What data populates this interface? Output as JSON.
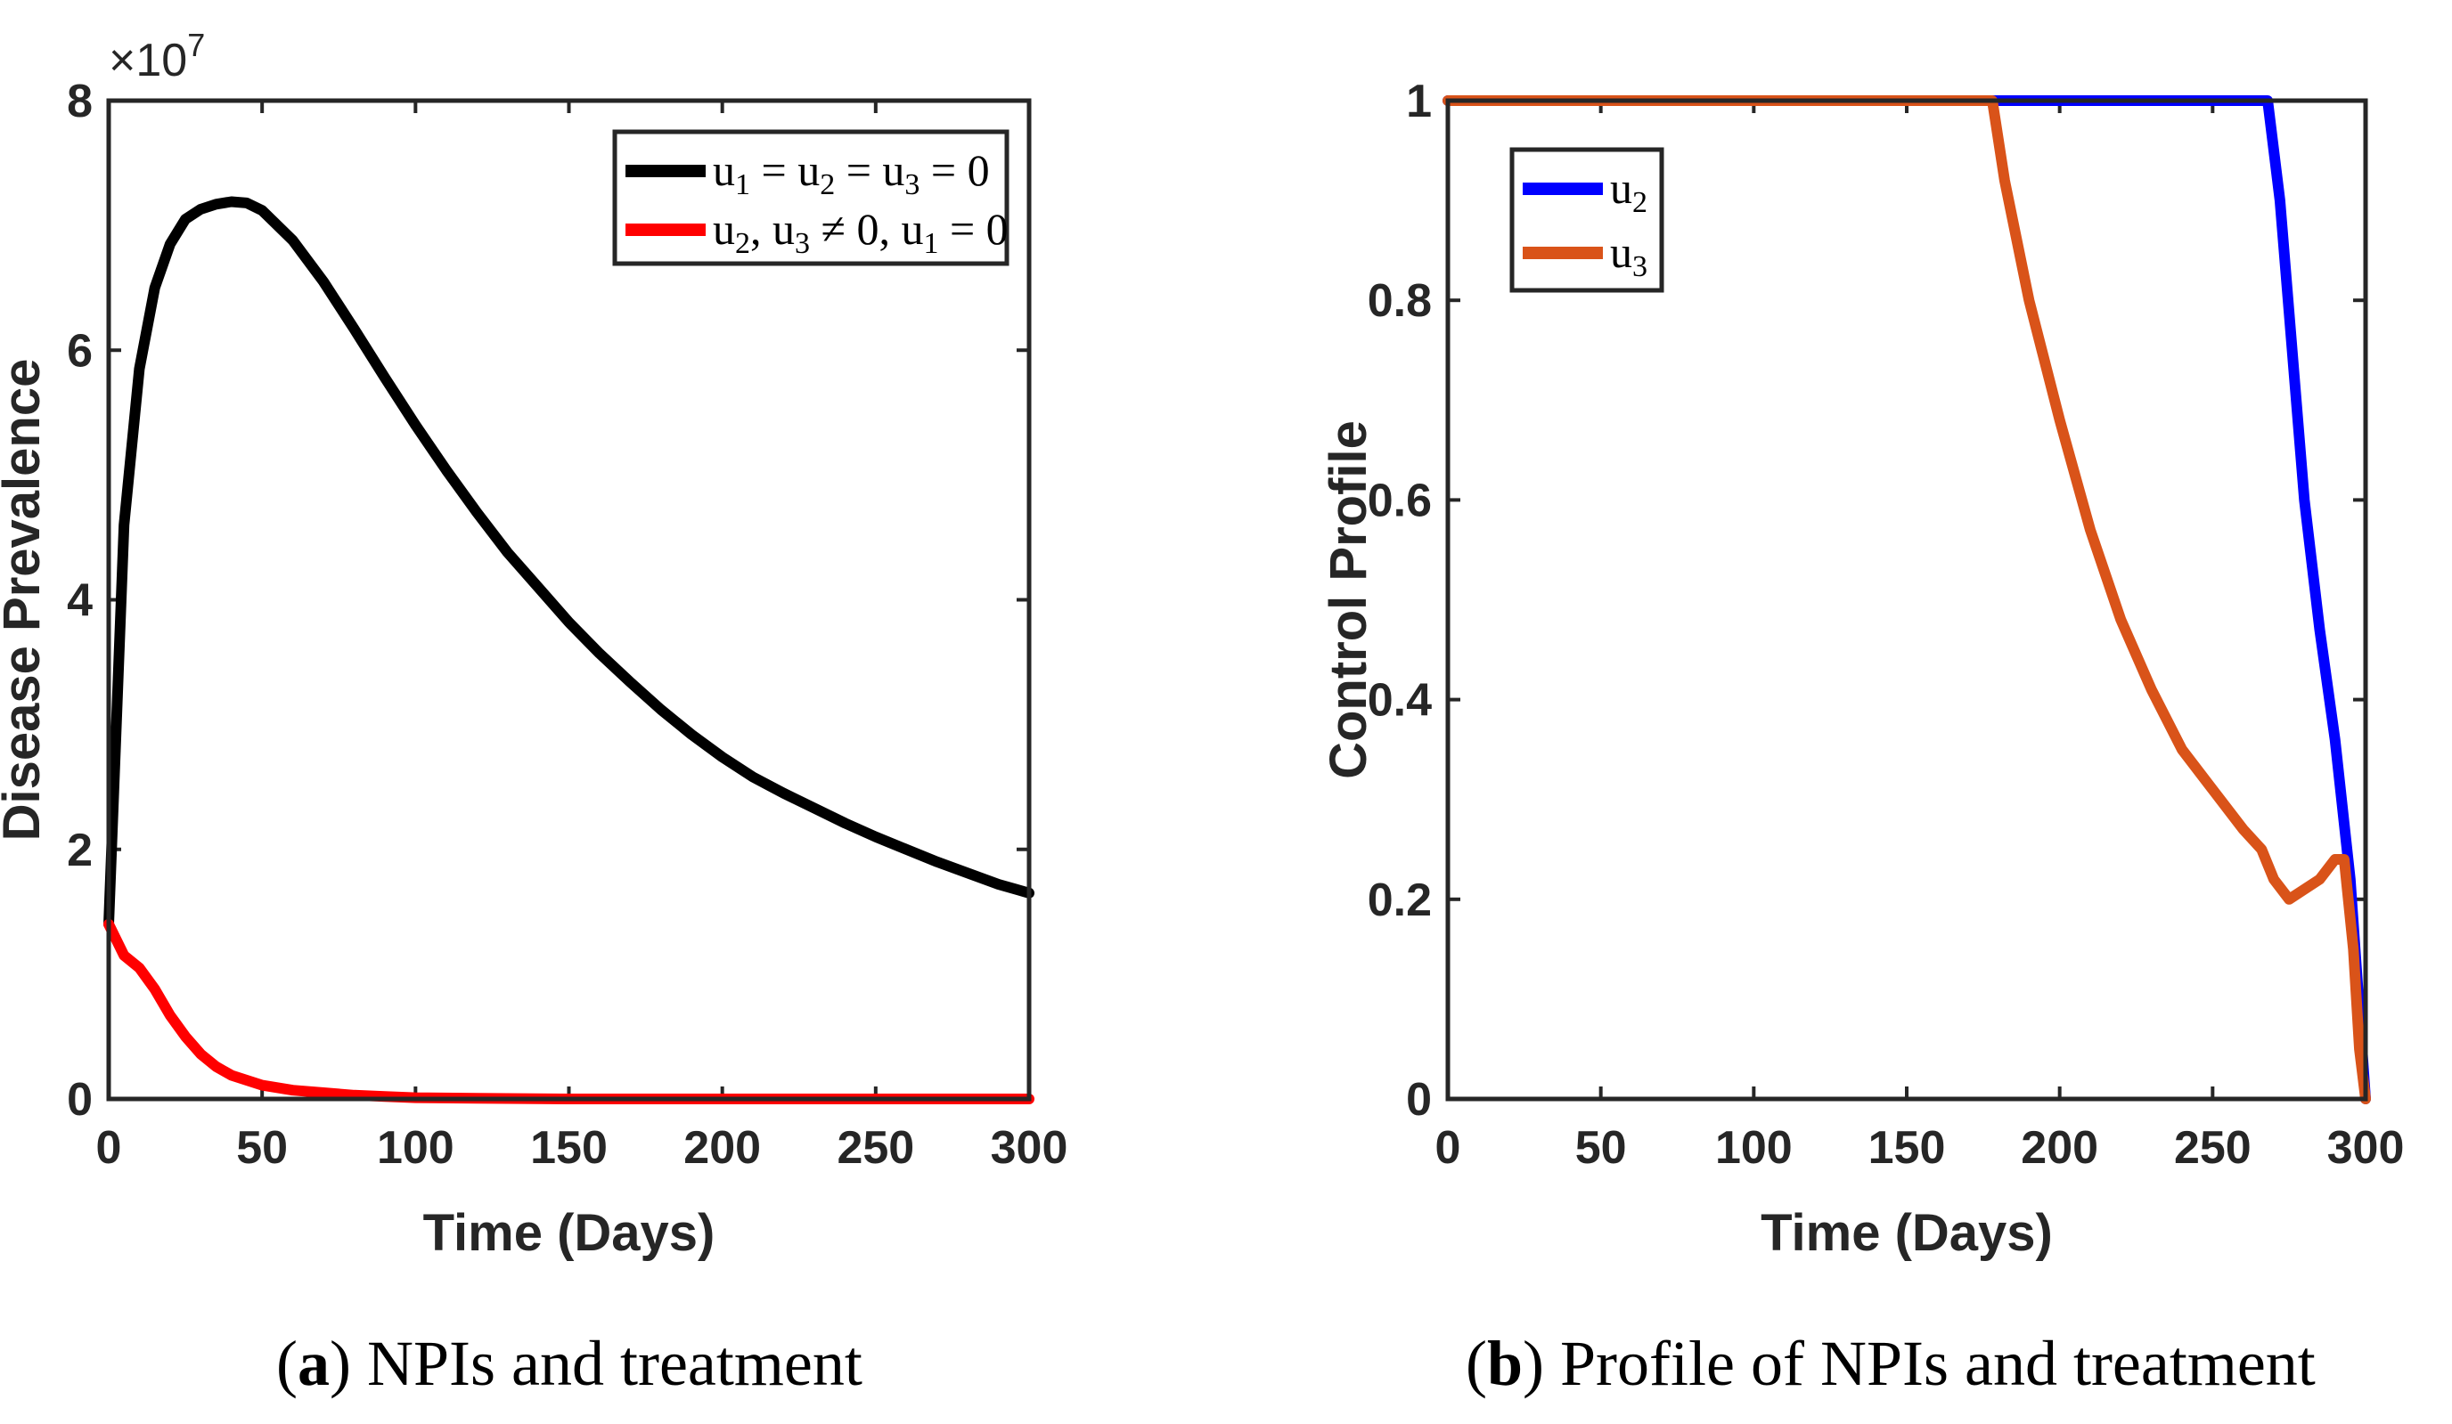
{
  "chart_data": [
    {
      "type": "line",
      "panel": "a",
      "caption_letter": "a",
      "caption_text": "NPIs and treatment",
      "xlabel": "Time (Days)",
      "ylabel": "Disease Prevalence",
      "xlim": [
        0,
        300
      ],
      "ylim": [
        0,
        8
      ],
      "x_ticks": [
        "0",
        "50",
        "100",
        "150",
        "200",
        "250",
        "300"
      ],
      "y_ticks": [
        "0",
        "2",
        "4",
        "6",
        "8"
      ],
      "y_multiplier_base": "×10",
      "y_multiplier_exp": "7",
      "grid": false,
      "legend_position": "top-right",
      "series": [
        {
          "name": "u1 = u2 = u3 = 0",
          "legend_parts": [
            "u",
            "1",
            " = u",
            "2",
            " = u",
            "3",
            " = 0"
          ],
          "color": "#000000",
          "x": [
            0,
            5,
            10,
            15,
            20,
            25,
            30,
            35,
            40,
            45,
            50,
            60,
            70,
            80,
            90,
            100,
            110,
            120,
            130,
            140,
            150,
            160,
            170,
            180,
            190,
            200,
            210,
            220,
            230,
            240,
            250,
            260,
            270,
            280,
            290,
            300
          ],
          "y": [
            1.4,
            4.6,
            5.85,
            6.5,
            6.85,
            7.05,
            7.13,
            7.17,
            7.19,
            7.18,
            7.12,
            6.88,
            6.55,
            6.17,
            5.78,
            5.4,
            5.04,
            4.7,
            4.38,
            4.1,
            3.82,
            3.57,
            3.34,
            3.12,
            2.92,
            2.74,
            2.58,
            2.45,
            2.33,
            2.21,
            2.1,
            2.0,
            1.9,
            1.81,
            1.72,
            1.65
          ]
        },
        {
          "name": "u2, u3 ≠ 0, u1 = 0",
          "legend_parts": [
            "u",
            "2",
            ", u",
            "3",
            " ≠ 0, u",
            "1",
            " = 0"
          ],
          "color": "#ff0000",
          "x": [
            0,
            5,
            10,
            15,
            20,
            25,
            30,
            35,
            40,
            50,
            60,
            70,
            80,
            90,
            100,
            120,
            150,
            200,
            250,
            300
          ],
          "y": [
            1.4,
            1.15,
            1.05,
            0.88,
            0.67,
            0.5,
            0.36,
            0.26,
            0.19,
            0.11,
            0.07,
            0.05,
            0.03,
            0.02,
            0.01,
            0.005,
            0.0,
            0.0,
            0.0,
            0.0
          ]
        }
      ]
    },
    {
      "type": "line",
      "panel": "b",
      "caption_letter": "b",
      "caption_text": "Profile of NPIs and treatment",
      "xlabel": "Time (Days)",
      "ylabel": "Control Profile",
      "xlim": [
        0,
        300
      ],
      "ylim": [
        0,
        1
      ],
      "x_ticks": [
        "0",
        "50",
        "100",
        "150",
        "200",
        "250",
        "300"
      ],
      "y_ticks": [
        "0",
        "0.2",
        "0.4",
        "0.6",
        "0.8",
        "1"
      ],
      "grid": false,
      "legend_position": "top-left",
      "series": [
        {
          "name": "u2",
          "legend_parts": [
            "u",
            "2"
          ],
          "color": "#0000ff",
          "x": [
            0,
            50,
            100,
            150,
            200,
            250,
            268,
            272,
            276,
            280,
            285,
            290,
            295,
            300
          ],
          "y": [
            1.0,
            1.0,
            1.0,
            1.0,
            1.0,
            1.0,
            1.0,
            0.9,
            0.75,
            0.6,
            0.47,
            0.36,
            0.22,
            0.0
          ]
        },
        {
          "name": "u3",
          "legend_parts": [
            "u",
            "3"
          ],
          "color": "#d95319",
          "x": [
            0,
            50,
            100,
            150,
            178,
            182,
            190,
            200,
            210,
            220,
            230,
            240,
            250,
            260,
            266,
            270,
            275,
            280,
            285,
            290,
            293,
            296,
            298,
            300
          ],
          "y": [
            1.0,
            1.0,
            1.0,
            1.0,
            1.0,
            0.92,
            0.8,
            0.68,
            0.57,
            0.48,
            0.41,
            0.35,
            0.31,
            0.27,
            0.25,
            0.22,
            0.2,
            0.21,
            0.22,
            0.24,
            0.24,
            0.15,
            0.05,
            0.0
          ]
        }
      ]
    }
  ]
}
